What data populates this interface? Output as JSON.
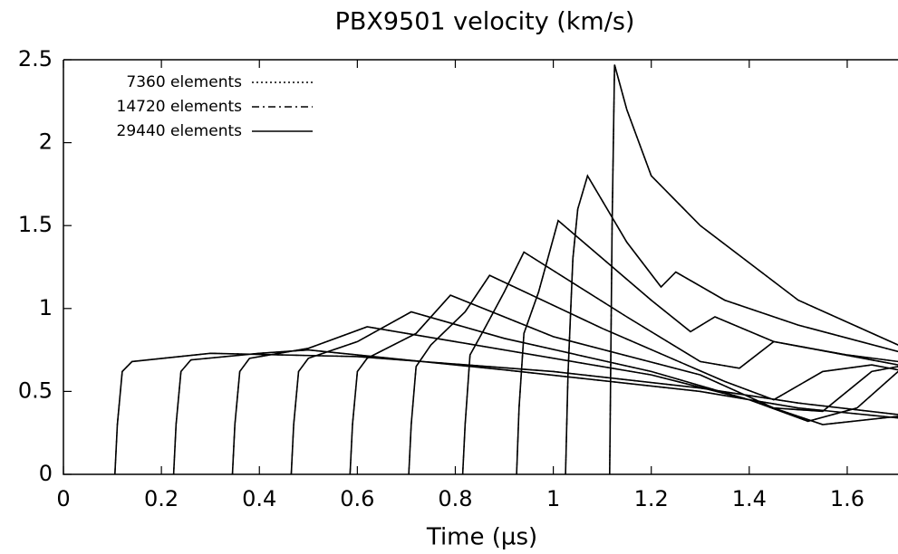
{
  "chart_data": {
    "type": "line",
    "title": "PBX9501 velocity (km/s)",
    "x_label": "Time (µs)",
    "xlim": [
      0,
      1.704
    ],
    "ylim": [
      0,
      2.5
    ],
    "xticks": [
      0,
      0.2,
      0.4,
      0.6,
      0.8,
      1,
      1.2,
      1.4,
      1.6
    ],
    "yticks": [
      0,
      0.5,
      1,
      1.5,
      2,
      2.5
    ],
    "legend": "top-left",
    "x": [
      0.105,
      0.11,
      0.12,
      0.14,
      0.3,
      0.6,
      1.0,
      1.3,
      1.5,
      1.704,
      null,
      0.225,
      0.23,
      0.24,
      0.26,
      0.4,
      0.5,
      0.9,
      1.3,
      1.5,
      1.704,
      null,
      0.345,
      0.35,
      0.36,
      0.38,
      0.5,
      0.62,
      0.8,
      1.2,
      1.4,
      1.55,
      1.704,
      null,
      0.465,
      0.47,
      0.48,
      0.5,
      0.6,
      0.71,
      0.9,
      1.2,
      1.4,
      1.52,
      1.62,
      1.704,
      null,
      0.585,
      0.59,
      0.6,
      0.62,
      0.72,
      0.79,
      1.0,
      1.3,
      1.45,
      1.55,
      1.65,
      1.704,
      null,
      0.705,
      0.71,
      0.72,
      0.75,
      0.82,
      0.87,
      1.1,
      1.35,
      1.45,
      1.55,
      1.65,
      1.704,
      null,
      0.815,
      0.82,
      0.83,
      0.86,
      0.9,
      0.94,
      1.15,
      1.3,
      1.38,
      1.45,
      1.6,
      1.704,
      null,
      0.925,
      0.93,
      0.94,
      0.97,
      1.01,
      1.2,
      1.28,
      1.33,
      1.45,
      1.704,
      null,
      1.025,
      1.03,
      1.04,
      1.05,
      1.07,
      1.15,
      1.22,
      1.25,
      1.35,
      1.5,
      1.704,
      null,
      1.115,
      1.12,
      1.125,
      1.15,
      1.2,
      1.3,
      1.5,
      1.704
    ],
    "series": [
      {
        "name": "7360 elements",
        "color": "#000000",
        "dash": "dotted",
        "values": [
          0,
          0.3,
          0.62,
          0.68,
          0.73,
          0.71,
          0.62,
          0.52,
          0.43,
          0.36,
          null,
          0,
          0.3,
          0.62,
          0.69,
          0.73,
          0.75,
          0.63,
          0.5,
          0.4,
          0.34,
          null,
          0,
          0.3,
          0.62,
          0.7,
          0.76,
          0.89,
          0.8,
          0.6,
          0.45,
          0.3,
          0.35,
          null,
          0,
          0.3,
          0.62,
          0.7,
          0.8,
          0.98,
          0.82,
          0.62,
          0.45,
          0.32,
          0.4,
          0.62,
          null,
          0,
          0.3,
          0.62,
          0.7,
          0.85,
          1.08,
          0.83,
          0.6,
          0.4,
          0.38,
          0.62,
          0.65,
          null,
          0,
          0.3,
          0.65,
          0.78,
          0.98,
          1.2,
          0.88,
          0.56,
          0.45,
          0.62,
          0.66,
          0.63,
          null,
          0,
          0.3,
          0.72,
          0.88,
          1.1,
          1.34,
          0.95,
          0.68,
          0.64,
          0.8,
          0.72,
          0.68,
          null,
          0,
          0.4,
          0.85,
          1.1,
          1.53,
          1.05,
          0.86,
          0.95,
          0.8,
          0.66,
          null,
          0,
          0.6,
          1.3,
          1.6,
          1.8,
          1.4,
          1.13,
          1.22,
          1.05,
          0.9,
          0.74,
          null,
          0,
          1.5,
          2.47,
          2.2,
          1.8,
          1.5,
          1.05,
          0.78
        ]
      },
      {
        "name": "14720 elements",
        "color": "#000000",
        "dash": "dashdot",
        "values": [
          0,
          0.3,
          0.62,
          0.68,
          0.73,
          0.71,
          0.62,
          0.52,
          0.43,
          0.36,
          null,
          0,
          0.3,
          0.62,
          0.69,
          0.73,
          0.75,
          0.63,
          0.5,
          0.4,
          0.34,
          null,
          0,
          0.3,
          0.62,
          0.7,
          0.76,
          0.89,
          0.8,
          0.6,
          0.45,
          0.3,
          0.35,
          null,
          0,
          0.3,
          0.62,
          0.7,
          0.8,
          0.98,
          0.82,
          0.62,
          0.45,
          0.32,
          0.4,
          0.62,
          null,
          0,
          0.3,
          0.62,
          0.7,
          0.85,
          1.08,
          0.83,
          0.6,
          0.4,
          0.38,
          0.62,
          0.65,
          null,
          0,
          0.3,
          0.65,
          0.78,
          0.98,
          1.2,
          0.88,
          0.56,
          0.45,
          0.62,
          0.66,
          0.63,
          null,
          0,
          0.3,
          0.72,
          0.88,
          1.1,
          1.34,
          0.95,
          0.68,
          0.64,
          0.8,
          0.72,
          0.68,
          null,
          0,
          0.4,
          0.85,
          1.1,
          1.53,
          1.05,
          0.86,
          0.95,
          0.8,
          0.66,
          null,
          0,
          0.6,
          1.3,
          1.6,
          1.8,
          1.4,
          1.13,
          1.22,
          1.05,
          0.9,
          0.74,
          null,
          0,
          1.5,
          2.47,
          2.2,
          1.8,
          1.5,
          1.05,
          0.78
        ]
      },
      {
        "name": "29440 elements",
        "color": "#000000",
        "dash": "solid",
        "values": [
          0,
          0.3,
          0.62,
          0.68,
          0.73,
          0.71,
          0.62,
          0.52,
          0.43,
          0.36,
          null,
          0,
          0.3,
          0.62,
          0.69,
          0.73,
          0.75,
          0.63,
          0.5,
          0.4,
          0.34,
          null,
          0,
          0.3,
          0.62,
          0.7,
          0.76,
          0.89,
          0.8,
          0.6,
          0.45,
          0.3,
          0.35,
          null,
          0,
          0.3,
          0.62,
          0.7,
          0.8,
          0.98,
          0.82,
          0.62,
          0.45,
          0.32,
          0.4,
          0.62,
          null,
          0,
          0.3,
          0.62,
          0.7,
          0.85,
          1.08,
          0.83,
          0.6,
          0.4,
          0.38,
          0.62,
          0.65,
          null,
          0,
          0.3,
          0.65,
          0.78,
          0.98,
          1.2,
          0.88,
          0.56,
          0.45,
          0.62,
          0.66,
          0.63,
          null,
          0,
          0.3,
          0.72,
          0.88,
          1.1,
          1.34,
          0.95,
          0.68,
          0.64,
          0.8,
          0.72,
          0.68,
          null,
          0,
          0.4,
          0.85,
          1.1,
          1.53,
          1.05,
          0.86,
          0.95,
          0.8,
          0.66,
          null,
          0,
          0.6,
          1.3,
          1.6,
          1.8,
          1.4,
          1.13,
          1.22,
          1.05,
          0.9,
          0.74,
          null,
          0,
          1.5,
          2.47,
          2.2,
          1.8,
          1.5,
          1.05,
          0.78
        ]
      }
    ]
  }
}
